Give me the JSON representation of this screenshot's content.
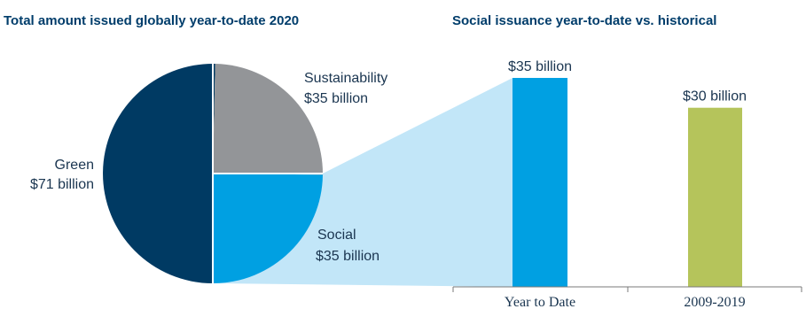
{
  "chart_data": [
    {
      "type": "pie",
      "title": "Total amount issued globally year-to-date 2020",
      "slices": [
        {
          "label": "Green",
          "value_text": "$71 billion",
          "value": 71,
          "color": "#003a63"
        },
        {
          "label": "Sustainability",
          "value_text": "$35 billion",
          "value": 35,
          "color": "#939598"
        },
        {
          "label": "Social",
          "value_text": "$35 billion",
          "value": 35,
          "color": "#00a0e2"
        }
      ],
      "highlight_color": "#c2e6f8"
    },
    {
      "type": "bar",
      "title": "Social issuance year-to-date vs. historical",
      "categories": [
        "Year to Date",
        "2009-2019"
      ],
      "values": [
        35,
        30
      ],
      "value_labels": [
        "$35 billion",
        "$30 billion"
      ],
      "colors": [
        "#00a0e2",
        "#b5c45b"
      ]
    }
  ]
}
